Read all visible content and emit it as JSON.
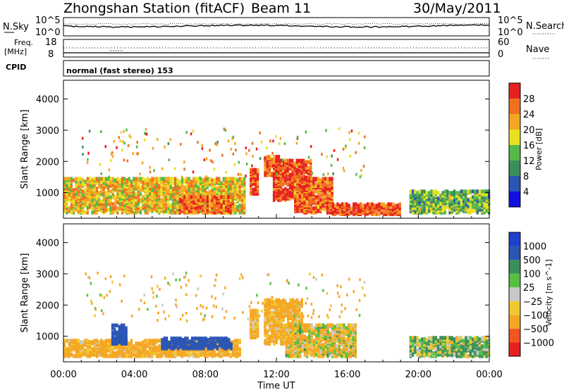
{
  "header": {
    "station": "Zhongshan Station (fitACF)",
    "beam": "Beam 11",
    "date": "30/May/2011"
  },
  "noise_panel": {
    "left_label": "N.Sky",
    "right_label": "N.Search",
    "left_top_tick": "10^5",
    "left_bottom_tick": "10^0",
    "right_top_tick": "10^5",
    "right_bottom_tick": "10^0"
  },
  "freq_panel": {
    "left_label_1": "Freq.",
    "left_label_2": "[MHz]",
    "right_label": "Nave",
    "left_top_tick": "18",
    "left_bottom_tick": "8",
    "right_top_tick": "60",
    "right_bottom_tick": "0"
  },
  "cpid": {
    "label": "CPID",
    "value": "normal (fast stereo) 153"
  },
  "colors": {
    "power_scale": [
      "#1010e0",
      "#2a55b5",
      "#3a8f5c",
      "#55b94a",
      "#e8e020",
      "#f5a623",
      "#f07020",
      "#e62020"
    ],
    "velocity_scale": [
      "#e62020",
      "#f25520",
      "#f5a623",
      "#f0c830",
      "#c8c8c8",
      "#55c040",
      "#3a8f5c",
      "#2a55b5",
      "#2040d0"
    ]
  },
  "chart_data": [
    {
      "type": "heatmap",
      "title": "Power",
      "ylabel": "Slant Range [km]",
      "xlabel": "Time UT",
      "xlim": [
        "00:00",
        "00:00"
      ],
      "x_ticks": [
        "00:00",
        "04:00",
        "08:00",
        "12:00",
        "16:00",
        "20:00",
        "00:00"
      ],
      "ylim": [
        180,
        4600
      ],
      "y_ticks": [
        1000,
        2000,
        3000,
        4000
      ],
      "colorbar_label": "Power [dB]",
      "colorbar_ticks": [
        4,
        8,
        12,
        16,
        20,
        24,
        28
      ],
      "colorbar_range": [
        0,
        32
      ],
      "echo_regions": [
        {
          "t_start": 0.0,
          "t_end": 10.2,
          "r_min": 300,
          "r_max": 1400,
          "value": 20
        },
        {
          "t_start": 6.5,
          "t_end": 9.5,
          "r_min": 300,
          "r_max": 800,
          "value": 26
        },
        {
          "t_start": 10.5,
          "t_end": 11.0,
          "r_min": 900,
          "r_max": 1700,
          "value": 28
        },
        {
          "t_start": 11.3,
          "t_end": 12.2,
          "r_min": 1500,
          "r_max": 2100,
          "value": 27
        },
        {
          "t_start": 11.8,
          "t_end": 14.0,
          "r_min": 700,
          "r_max": 2000,
          "value": 29
        },
        {
          "t_start": 13.0,
          "t_end": 15.2,
          "r_min": 300,
          "r_max": 1400,
          "value": 26
        },
        {
          "t_start": 15.0,
          "t_end": 19.0,
          "r_min": 250,
          "r_max": 600,
          "value": 28
        },
        {
          "t_start": 19.5,
          "t_end": 24.0,
          "r_min": 300,
          "r_max": 1000,
          "value": 14
        }
      ]
    },
    {
      "type": "heatmap",
      "title": "Velocity",
      "ylabel": "Slant Range [km]",
      "xlabel": "Time UT",
      "xlim": [
        "00:00",
        "00:00"
      ],
      "x_ticks": [
        "00:00",
        "04:00",
        "08:00",
        "12:00",
        "16:00",
        "20:00",
        "00:00"
      ],
      "ylim": [
        180,
        4600
      ],
      "y_ticks": [
        1000,
        2000,
        3000,
        4000
      ],
      "colorbar_label": "Velocity [m s^-1]",
      "colorbar_ticks": [
        "1000",
        "500",
        "100",
        "25",
        "−25",
        "−100",
        "−500",
        "−1000"
      ],
      "echo_regions": [
        {
          "t_start": 0.0,
          "t_end": 10.0,
          "r_min": 300,
          "r_max": 800,
          "value": -200
        },
        {
          "t_start": 2.7,
          "t_end": 3.6,
          "r_min": 700,
          "r_max": 1300,
          "value": 800
        },
        {
          "t_start": 5.5,
          "t_end": 9.5,
          "r_min": 550,
          "r_max": 900,
          "value": 700
        },
        {
          "t_start": 10.5,
          "t_end": 11.0,
          "r_min": 900,
          "r_max": 1800,
          "value": -200
        },
        {
          "t_start": 11.3,
          "t_end": 13.5,
          "r_min": 700,
          "r_max": 2100,
          "value": -200
        },
        {
          "t_start": 12.5,
          "t_end": 16.5,
          "r_min": 300,
          "r_max": 1300,
          "value": -80
        },
        {
          "t_start": 19.5,
          "t_end": 24.0,
          "r_min": 300,
          "r_max": 900,
          "value": 80
        }
      ]
    }
  ]
}
